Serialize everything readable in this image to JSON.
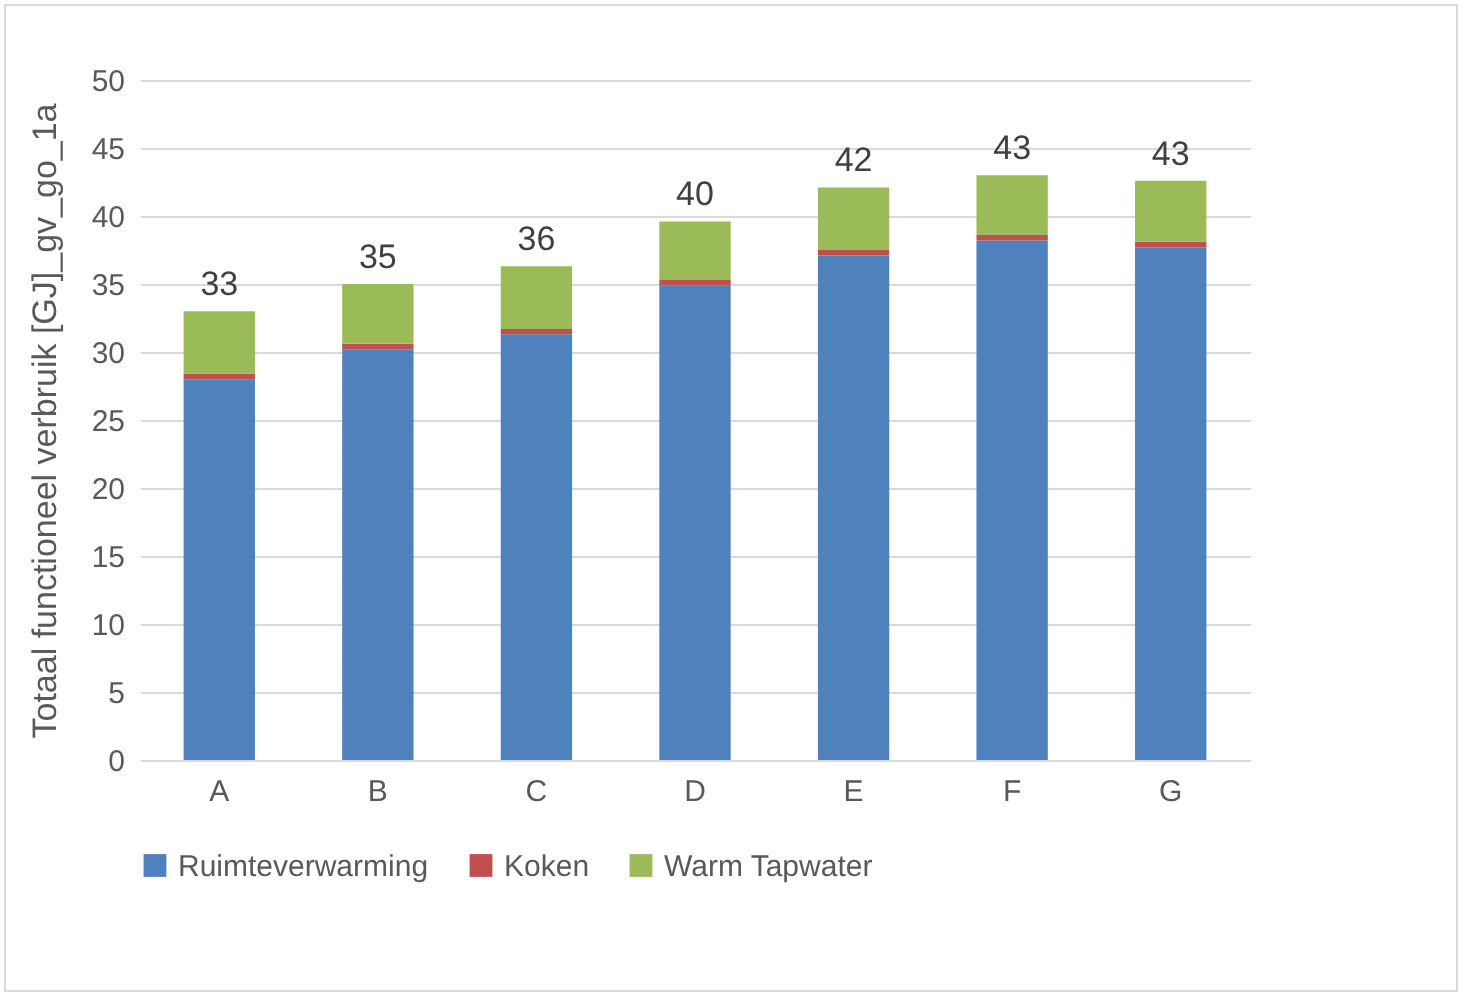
{
  "chart_data": {
    "type": "bar",
    "stacked": true,
    "ylabel": "Totaal functioneel verbruik [GJ]_gv_go_1a",
    "categories": [
      "A",
      "B",
      "C",
      "D",
      "E",
      "F",
      "G"
    ],
    "series": [
      {
        "name": "Ruimteverwarming",
        "color": "#4f81bd",
        "values": [
          28.0,
          30.2,
          31.3,
          34.9,
          37.1,
          38.2,
          37.7
        ]
      },
      {
        "name": "Koken",
        "color": "#c0504d",
        "values": [
          0.4,
          0.4,
          0.4,
          0.4,
          0.4,
          0.4,
          0.4
        ]
      },
      {
        "name": "Warm Tapwater",
        "color": "#9bbb59",
        "values": [
          4.6,
          4.4,
          4.6,
          4.3,
          4.6,
          4.4,
          4.5
        ]
      }
    ],
    "totals": [
      "33",
      "35",
      "36",
      "40",
      "42",
      "43",
      "43"
    ],
    "ylim": [
      0,
      50
    ],
    "yticks": [
      0,
      5,
      10,
      15,
      20,
      25,
      30,
      35,
      40,
      45,
      50
    ],
    "grid": "y",
    "legend": "bottom"
  }
}
